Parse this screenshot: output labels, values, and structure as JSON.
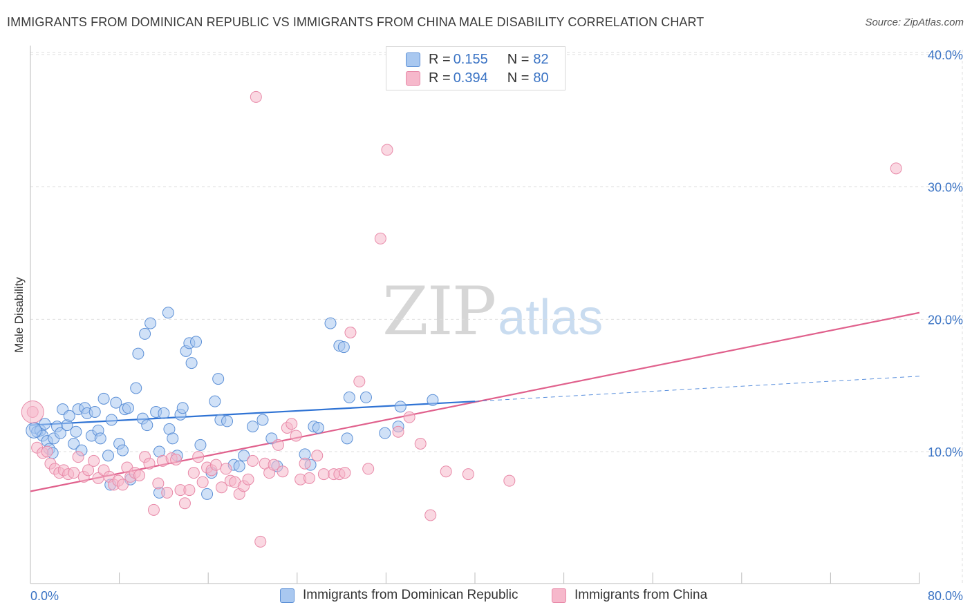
{
  "title": "IMMIGRANTS FROM DOMINICAN REPUBLIC VS IMMIGRANTS FROM CHINA MALE DISABILITY CORRELATION CHART",
  "source": "Source: ZipAtlas.com",
  "watermark": {
    "zip": "ZIP",
    "atlas": "atlas"
  },
  "colors": {
    "blue_fill": "#a9c8f0",
    "blue_stroke": "#5b8fd6",
    "blue_line": "#2f73d4",
    "pink_fill": "#f6b8cb",
    "pink_stroke": "#e889a8",
    "pink_line": "#e0608c",
    "axis_text": "#3a73c4",
    "grid": "#dddddd"
  },
  "legend_top": {
    "rows": [
      {
        "r_key": "R = ",
        "r_val": "0.155",
        "n_key": "N = ",
        "n_val": "82",
        "color": "#a9c8f0"
      },
      {
        "r_key": "R = ",
        "r_val": "0.394",
        "n_key": "N = ",
        "n_val": "80",
        "color": "#f6b8cb"
      }
    ]
  },
  "legend_bottom": [
    {
      "label": "Immigrants from Dominican Republic",
      "color": "#a9c8f0"
    },
    {
      "label": "Immigrants from China",
      "color": "#f6b8cb"
    }
  ],
  "chart_data": {
    "type": "scatter",
    "title": "IMMIGRANTS FROM DOMINICAN REPUBLIC VS IMMIGRANTS FROM CHINA MALE DISABILITY CORRELATION CHART",
    "xlabel": "",
    "ylabel": "Male Disability",
    "xlim": [
      0,
      80
    ],
    "ylim": [
      0,
      42
    ],
    "x_tick_labels": [
      "0.0%",
      "80.0%"
    ],
    "y_ticks": [
      10,
      20,
      30,
      40
    ],
    "y_tick_labels": [
      "10.0%",
      "20.0%",
      "30.0%",
      "40.0%"
    ],
    "grid": "horizontal dashed",
    "legend_position": "top-center",
    "series": [
      {
        "name": "Immigrants from Dominican Republic",
        "color": "#a9c8f0",
        "trend": {
          "x": [
            0,
            40
          ],
          "y": [
            12.0,
            13.8
          ],
          "dashed_extension": {
            "x": [
              40,
              80
            ],
            "y": [
              13.8,
              15.7
            ]
          }
        },
        "points": [
          [
            0.4,
            11.8
          ],
          [
            0.6,
            11.5
          ],
          [
            0.9,
            11.6
          ],
          [
            1.1,
            11.2
          ],
          [
            1.3,
            12.1
          ],
          [
            1.5,
            10.8
          ],
          [
            1.7,
            10.2
          ],
          [
            2.1,
            11.0
          ],
          [
            2.4,
            11.9
          ],
          [
            2.7,
            11.4
          ],
          [
            2.9,
            13.2
          ],
          [
            3.3,
            12.0
          ],
          [
            3.5,
            12.7
          ],
          [
            3.9,
            10.6
          ],
          [
            4.1,
            11.5
          ],
          [
            4.3,
            13.2
          ],
          [
            4.6,
            10.1
          ],
          [
            4.9,
            13.3
          ],
          [
            5.1,
            12.9
          ],
          [
            5.5,
            11.2
          ],
          [
            5.8,
            13.0
          ],
          [
            6.1,
            11.6
          ],
          [
            6.3,
            11.0
          ],
          [
            6.6,
            14.0
          ],
          [
            7.0,
            9.7
          ],
          [
            7.3,
            12.4
          ],
          [
            7.7,
            13.7
          ],
          [
            8.0,
            10.6
          ],
          [
            8.3,
            10.1
          ],
          [
            8.5,
            13.2
          ],
          [
            8.8,
            13.3
          ],
          [
            9.5,
            14.8
          ],
          [
            9.7,
            17.4
          ],
          [
            10.1,
            12.5
          ],
          [
            10.3,
            18.9
          ],
          [
            10.5,
            12.0
          ],
          [
            10.8,
            19.7
          ],
          [
            11.3,
            13.0
          ],
          [
            11.6,
            10.0
          ],
          [
            12.0,
            12.9
          ],
          [
            12.4,
            20.5
          ],
          [
            12.5,
            11.7
          ],
          [
            12.8,
            11.0
          ],
          [
            13.2,
            9.7
          ],
          [
            13.5,
            12.8
          ],
          [
            13.7,
            13.3
          ],
          [
            14.0,
            17.6
          ],
          [
            14.3,
            18.2
          ],
          [
            14.5,
            16.7
          ],
          [
            14.9,
            18.3
          ],
          [
            15.3,
            10.5
          ],
          [
            15.9,
            6.8
          ],
          [
            16.3,
            8.4
          ],
          [
            16.6,
            13.8
          ],
          [
            16.9,
            15.5
          ],
          [
            17.1,
            12.4
          ],
          [
            17.7,
            12.3
          ],
          [
            18.3,
            9.0
          ],
          [
            18.8,
            8.9
          ],
          [
            19.2,
            9.7
          ],
          [
            20.0,
            11.9
          ],
          [
            20.9,
            12.4
          ],
          [
            21.7,
            11.0
          ],
          [
            22.2,
            8.9
          ],
          [
            24.7,
            9.8
          ],
          [
            25.2,
            9.0
          ],
          [
            25.5,
            11.9
          ],
          [
            25.9,
            11.8
          ],
          [
            27.0,
            19.7
          ],
          [
            27.8,
            18.0
          ],
          [
            28.2,
            17.9
          ],
          [
            28.5,
            11.0
          ],
          [
            28.7,
            14.1
          ],
          [
            30.2,
            14.1
          ],
          [
            31.9,
            11.4
          ],
          [
            33.1,
            11.9
          ],
          [
            33.3,
            13.4
          ],
          [
            36.2,
            13.9
          ],
          [
            7.2,
            7.5
          ],
          [
            9.0,
            7.9
          ],
          [
            11.6,
            6.9
          ],
          [
            2.0,
            9.9
          ]
        ]
      },
      {
        "name": "Immigrants from China",
        "color": "#f6b8cb",
        "trend": {
          "x": [
            0,
            80
          ],
          "y": [
            7.0,
            20.5
          ]
        },
        "points": [
          [
            0.2,
            13.0
          ],
          [
            0.6,
            10.3
          ],
          [
            1.1,
            9.9
          ],
          [
            1.5,
            10.0
          ],
          [
            1.8,
            9.1
          ],
          [
            2.2,
            8.7
          ],
          [
            2.6,
            8.4
          ],
          [
            3.0,
            8.6
          ],
          [
            3.4,
            8.3
          ],
          [
            3.9,
            8.4
          ],
          [
            4.3,
            9.6
          ],
          [
            4.8,
            8.1
          ],
          [
            5.2,
            8.6
          ],
          [
            5.7,
            9.3
          ],
          [
            6.1,
            8.0
          ],
          [
            6.6,
            8.6
          ],
          [
            7.1,
            8.1
          ],
          [
            7.5,
            7.5
          ],
          [
            7.9,
            7.8
          ],
          [
            8.3,
            7.5
          ],
          [
            8.7,
            8.8
          ],
          [
            9.0,
            8.1
          ],
          [
            9.4,
            8.4
          ],
          [
            9.8,
            8.2
          ],
          [
            10.3,
            9.6
          ],
          [
            10.7,
            9.1
          ],
          [
            11.1,
            5.6
          ],
          [
            11.5,
            7.6
          ],
          [
            11.9,
            9.3
          ],
          [
            12.3,
            6.9
          ],
          [
            12.7,
            9.5
          ],
          [
            13.1,
            9.4
          ],
          [
            13.5,
            7.1
          ],
          [
            13.9,
            6.1
          ],
          [
            14.3,
            7.1
          ],
          [
            14.7,
            8.4
          ],
          [
            15.1,
            9.6
          ],
          [
            15.5,
            7.7
          ],
          [
            15.9,
            8.8
          ],
          [
            16.3,
            8.6
          ],
          [
            16.7,
            9.0
          ],
          [
            17.2,
            7.3
          ],
          [
            17.6,
            8.7
          ],
          [
            18.0,
            7.8
          ],
          [
            18.4,
            7.7
          ],
          [
            18.8,
            6.8
          ],
          [
            19.2,
            7.4
          ],
          [
            19.6,
            7.9
          ],
          [
            20.0,
            9.3
          ],
          [
            20.3,
            36.8
          ],
          [
            20.7,
            3.2
          ],
          [
            21.1,
            9.1
          ],
          [
            21.5,
            8.4
          ],
          [
            21.9,
            9.0
          ],
          [
            22.3,
            10.5
          ],
          [
            22.7,
            8.5
          ],
          [
            23.1,
            11.8
          ],
          [
            23.5,
            12.1
          ],
          [
            23.9,
            11.2
          ],
          [
            24.3,
            7.9
          ],
          [
            24.7,
            9.1
          ],
          [
            25.1,
            8.0
          ],
          [
            25.8,
            9.7
          ],
          [
            26.4,
            8.3
          ],
          [
            27.3,
            8.3
          ],
          [
            27.8,
            8.3
          ],
          [
            28.3,
            8.4
          ],
          [
            28.8,
            19.0
          ],
          [
            29.6,
            15.3
          ],
          [
            30.4,
            8.7
          ],
          [
            31.5,
            26.1
          ],
          [
            32.1,
            32.8
          ],
          [
            33.1,
            11.5
          ],
          [
            34.1,
            12.6
          ],
          [
            35.1,
            10.6
          ],
          [
            36.0,
            5.2
          ],
          [
            37.4,
            8.5
          ],
          [
            39.4,
            8.3
          ],
          [
            43.1,
            7.8
          ],
          [
            77.9,
            31.4
          ]
        ]
      }
    ]
  }
}
